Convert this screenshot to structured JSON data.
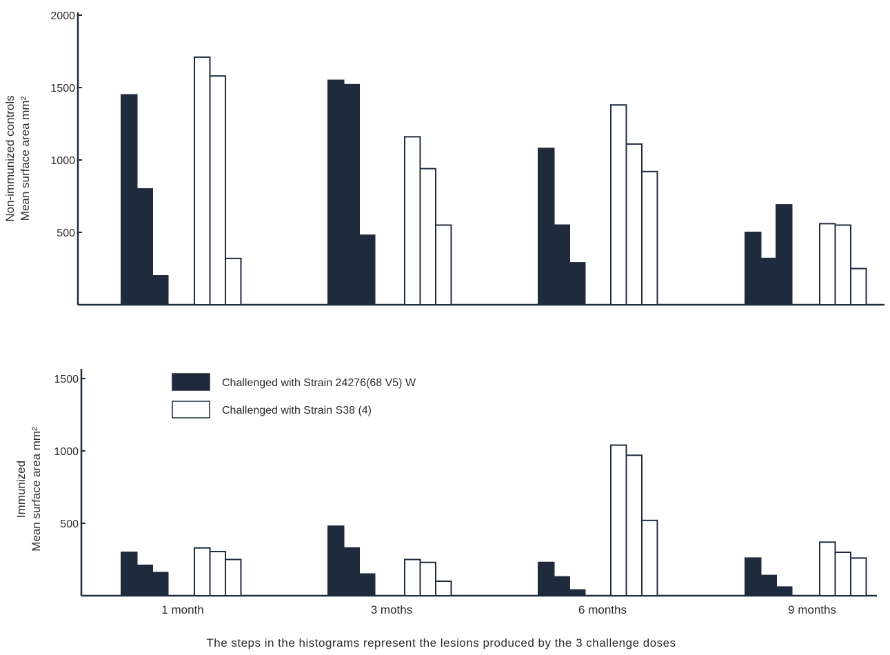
{
  "colors": {
    "filled": "#1f2a3c",
    "hollow": "#ffffff",
    "stroke": "#1f2a3c",
    "background": "#ffffff"
  },
  "chart_data": [
    {
      "type": "bar",
      "panel": "top",
      "ylabel_lines": [
        "Non-immunized controls",
        "Mean surface area mm²"
      ],
      "ylim": [
        0,
        2000
      ],
      "yticks": [
        500,
        1000,
        1500,
        2000
      ],
      "ytick_labels": [
        "500",
        "1000",
        "1500",
        "2000"
      ],
      "categories": [
        "1 month",
        "3 moths",
        "6 months",
        "9 months"
      ],
      "series": [
        {
          "name": "Challenged with Strain 24276(68 V5) W",
          "style": "filled",
          "steps": [
            [
              1450,
              800,
              200
            ],
            [
              1550,
              1520,
              480
            ],
            [
              1080,
              550,
              290
            ],
            [
              500,
              320,
              690
            ]
          ]
        },
        {
          "name": "Challenged with Strain S38 (4)",
          "style": "hollow",
          "steps": [
            [
              1710,
              1580,
              320
            ],
            [
              1160,
              940,
              550
            ],
            [
              1380,
              1110,
              920
            ],
            [
              560,
              550,
              250
            ]
          ]
        }
      ]
    },
    {
      "type": "bar",
      "panel": "bottom",
      "ylabel_lines": [
        "Immunized",
        "Mean surface area mm²"
      ],
      "ylim": [
        0,
        1500
      ],
      "yticks": [
        500,
        1000,
        1500
      ],
      "ytick_labels": [
        "500",
        "1000",
        "1500"
      ],
      "categories": [
        "1 month",
        "3 moths",
        "6 months",
        "9 months"
      ],
      "series": [
        {
          "name": "Challenged with Strain 24276(68 V5) W",
          "style": "filled",
          "steps": [
            [
              300,
              210,
              160
            ],
            [
              480,
              330,
              150
            ],
            [
              230,
              130,
              40
            ],
            [
              260,
              140,
              60
            ]
          ]
        },
        {
          "name": "Challenged with Strain S38 (4)",
          "style": "hollow",
          "steps": [
            [
              330,
              305,
              250
            ],
            [
              250,
              230,
              100
            ],
            [
              1040,
              970,
              520
            ],
            [
              370,
              300,
              260
            ]
          ]
        }
      ]
    }
  ],
  "legend": [
    {
      "label": "Challenged with Strain 24276(68 V5) W",
      "style": "filled"
    },
    {
      "label": "Challenged with Strain S38 (4)",
      "style": "hollow"
    }
  ],
  "caption": "The steps in the histograms represent the lesions produced by the 3 challenge doses"
}
